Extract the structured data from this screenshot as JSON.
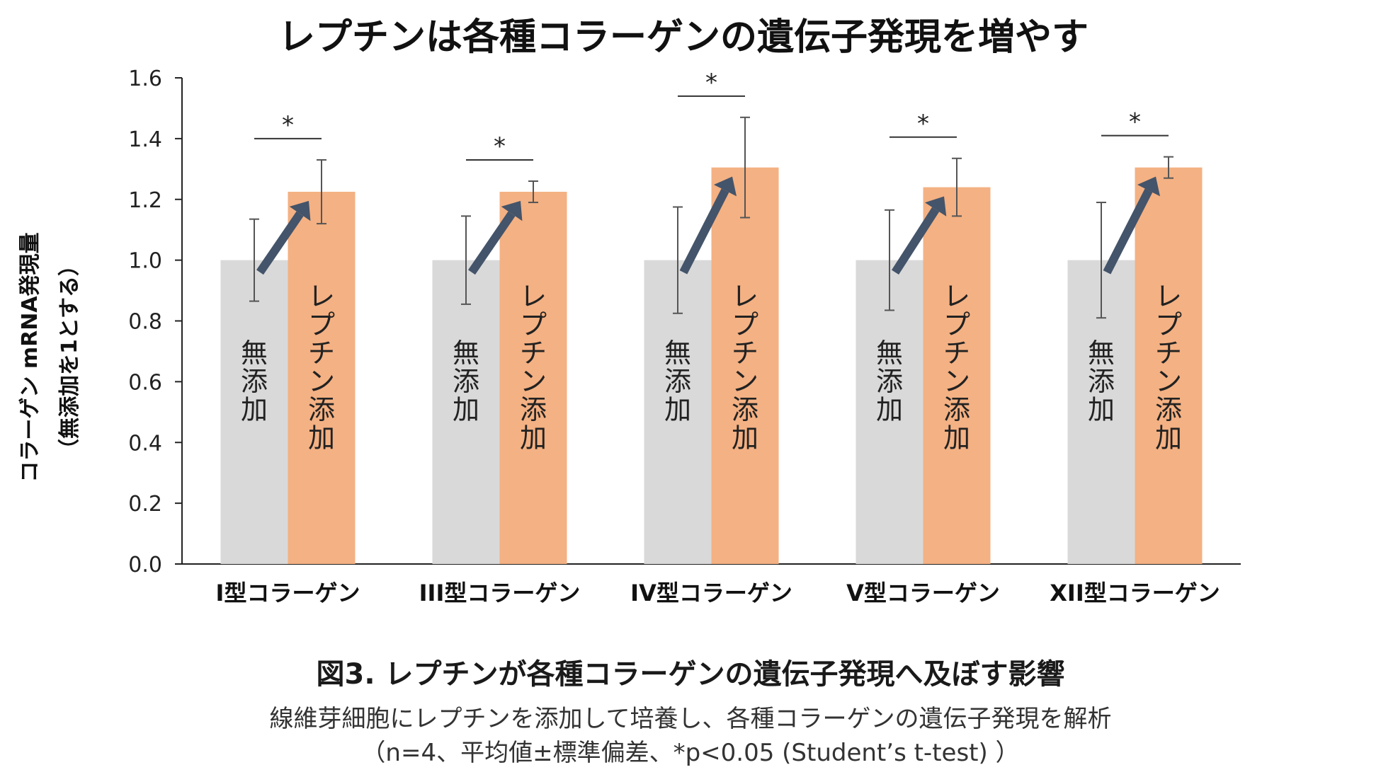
{
  "chart_data": {
    "type": "bar",
    "title": "レプチンは各種コラーゲンの遺伝子発現を増やす",
    "ylabel": "コラーゲン mRNA発現量",
    "ylabel2": "（無添加を1とする）",
    "ylim": [
      0,
      1.6
    ],
    "yticks": [
      "0.0",
      "0.2",
      "0.4",
      "0.6",
      "0.8",
      "1.0",
      "1.2",
      "1.4",
      "1.6"
    ],
    "grid": false,
    "categories": [
      "I型コラーゲン",
      "III型コラーゲン",
      "IV型コラーゲン",
      "V型コラーゲン",
      "XII型コラーゲン"
    ],
    "series": [
      {
        "name": "無添加",
        "color": "#d9d9d9",
        "values": [
          1.0,
          1.0,
          1.0,
          1.0,
          1.0
        ],
        "errors": [
          0.135,
          0.145,
          0.175,
          0.165,
          0.19
        ]
      },
      {
        "name": "レプチン添加",
        "color": "#f4b183",
        "values": [
          1.225,
          1.225,
          1.305,
          1.24,
          1.305
        ],
        "errors": [
          0.105,
          0.035,
          0.165,
          0.095,
          0.035
        ]
      }
    ],
    "significance": [
      "*",
      "*",
      "*",
      "*",
      "*"
    ],
    "arrow_color": "#44546a"
  },
  "caption": {
    "title": "図3. レプチンが各種コラーゲンの遺伝子発現へ及ぼす影響",
    "line1": "線維芽細胞にレプチンを添加して培養し、各種コラーゲンの遺伝子発現を解析",
    "line2": "（n=4、平均値±標準偏差、*p<0.05 (Student’s t-test) ）"
  }
}
